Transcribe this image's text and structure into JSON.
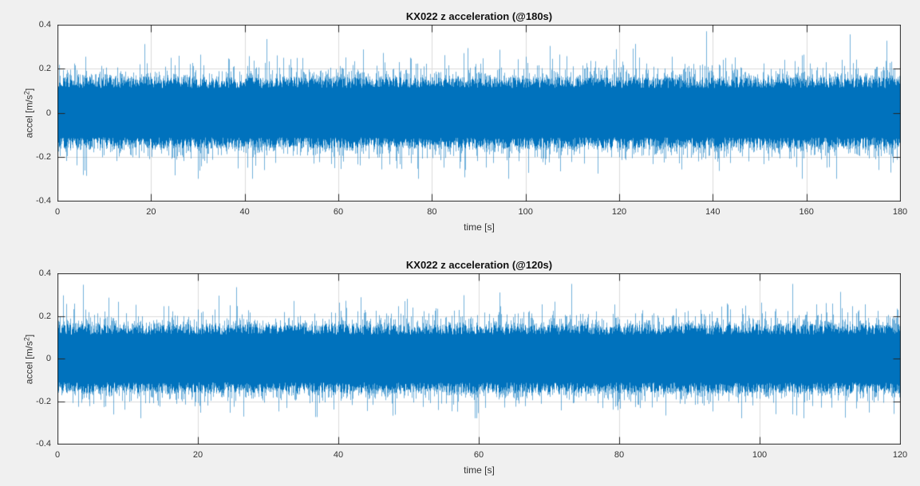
{
  "figure": {
    "background": "#f0f0f0",
    "axes_background": "#ffffff",
    "axis_color": "#262626",
    "grid_color": "#dcdcdc",
    "text_color": "#333333",
    "title_color": "#111111",
    "accent_blue": "#0072bd"
  },
  "chart_data": [
    {
      "type": "line",
      "title": "KX022 z acceleration (@180s)",
      "xlabel": "time [s]",
      "ylabel": "accel [m/s²]",
      "ylabel_parts": {
        "base": "accel [m/s",
        "sup": "2",
        "close": "]"
      },
      "xlim": [
        0,
        180
      ],
      "ylim": [
        -0.4,
        0.4
      ],
      "xticks": [
        0,
        20,
        40,
        60,
        80,
        100,
        120,
        140,
        160,
        180
      ],
      "xticklabels": [
        "0",
        "20",
        "40",
        "60",
        "80",
        "100",
        "120",
        "140",
        "160",
        "180"
      ],
      "yticks": [
        0.4,
        0.2,
        0,
        -0.2,
        -0.4
      ],
      "yticklabels": [
        "0.4",
        "0.2",
        "0",
        "-0.2",
        "-0.4"
      ],
      "grid": true,
      "legend": null,
      "line_color": "#0072bd",
      "signal": {
        "kind": "dense zero-mean sensor noise waveform",
        "duration_s": 180,
        "mean": 0,
        "std_est": 0.07,
        "typical_envelope": [
          -0.2,
          0.2
        ],
        "peak_max": 0.37,
        "peak_min": -0.3,
        "seed": 20180
      }
    },
    {
      "type": "line",
      "title": "KX022 z acceleration (@120s)",
      "xlabel": "time [s]",
      "ylabel": "accel [m/s²]",
      "ylabel_parts": {
        "base": "accel [m/s",
        "sup": "2",
        "close": "]"
      },
      "xlim": [
        0,
        120
      ],
      "ylim": [
        -0.4,
        0.4
      ],
      "xticks": [
        0,
        20,
        40,
        60,
        80,
        100,
        120
      ],
      "xticklabels": [
        "0",
        "20",
        "40",
        "60",
        "80",
        "100",
        "120"
      ],
      "yticks": [
        0.4,
        0.2,
        0,
        -0.2,
        -0.4
      ],
      "yticklabels": [
        "0.4",
        "0.2",
        "0",
        "-0.2",
        "-0.4"
      ],
      "grid": true,
      "legend": null,
      "line_color": "#0072bd",
      "signal": {
        "kind": "dense zero-mean sensor noise waveform",
        "duration_s": 120,
        "mean": 0,
        "std_est": 0.07,
        "typical_envelope": [
          -0.2,
          0.2
        ],
        "peak_max": 0.35,
        "peak_min": -0.28,
        "seed": 20120
      }
    }
  ]
}
